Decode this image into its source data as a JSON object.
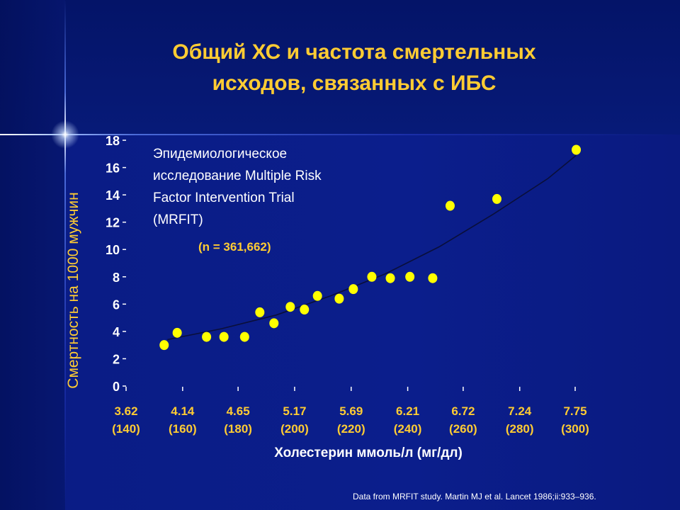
{
  "slide": {
    "title_line1": "Общий ХС и частота смертельных",
    "title_line2": "исходов, связанных с ИБС",
    "study_line1": "Эпидемиологическое",
    "study_line2": "исследование Multiple Risk",
    "study_line3": "Factor Intervention Trial",
    "study_line4": "(MRFIT)",
    "n_label": "(n = 361,662)",
    "source": "Data from MRFIT study. Martin MJ et al. Lancet 1986;ii:933–936."
  },
  "colors": {
    "background": "#0b1e8c",
    "accent_text": "#ffcc33",
    "point": "#ffff00",
    "tick_label": "#ffffff"
  },
  "chart_data": {
    "type": "scatter",
    "title": "Общий ХС и частота смертельных исходов, связанных с ИБС",
    "xlabel": "Холестерин  ммоль/л (мг/дл)",
    "ylabel": "Смертность на 1000 мужчин",
    "xlim": [
      3.62,
      7.75
    ],
    "ylim": [
      0,
      18
    ],
    "x_ticks": [
      {
        "value": 3.62,
        "line1": "3.62",
        "line2": "(140)"
      },
      {
        "value": 4.14,
        "line1": "4.14",
        "line2": "(160)"
      },
      {
        "value": 4.65,
        "line1": "4.65",
        "line2": "(180)"
      },
      {
        "value": 5.17,
        "line1": "5.17",
        "line2": "(200)"
      },
      {
        "value": 5.69,
        "line1": "5.69",
        "line2": "(220)"
      },
      {
        "value": 6.21,
        "line1": "6.21",
        "line2": "(240)"
      },
      {
        "value": 6.72,
        "line1": "6.72",
        "line2": "(260)"
      },
      {
        "value": 7.24,
        "line1": "7.24",
        "line2": "(280)"
      },
      {
        "value": 7.75,
        "line1": "7.75",
        "line2": "(300)"
      }
    ],
    "y_ticks": [
      0,
      2,
      4,
      6,
      8,
      10,
      12,
      14,
      16,
      18
    ],
    "series": [
      {
        "points": [
          {
            "x": 3.97,
            "y": 3.0
          },
          {
            "x": 4.09,
            "y": 3.9
          },
          {
            "x": 4.36,
            "y": 3.6
          },
          {
            "x": 4.52,
            "y": 3.6
          },
          {
            "x": 4.71,
            "y": 3.6
          },
          {
            "x": 4.85,
            "y": 5.4
          },
          {
            "x": 4.98,
            "y": 4.6
          },
          {
            "x": 5.13,
            "y": 5.8
          },
          {
            "x": 5.26,
            "y": 5.6
          },
          {
            "x": 5.38,
            "y": 6.6
          },
          {
            "x": 5.58,
            "y": 6.4
          },
          {
            "x": 5.71,
            "y": 7.1
          },
          {
            "x": 5.88,
            "y": 8.0
          },
          {
            "x": 6.05,
            "y": 7.9
          },
          {
            "x": 6.23,
            "y": 8.0
          },
          {
            "x": 6.44,
            "y": 7.9
          },
          {
            "x": 6.6,
            "y": 13.2
          },
          {
            "x": 7.03,
            "y": 13.7
          },
          {
            "x": 7.76,
            "y": 17.3
          }
        ]
      }
    ],
    "trend": [
      {
        "x": 4.0,
        "y": 3.4
      },
      {
        "x": 4.5,
        "y": 4.2
      },
      {
        "x": 5.0,
        "y": 5.2
      },
      {
        "x": 5.5,
        "y": 6.6
      },
      {
        "x": 6.0,
        "y": 8.2
      },
      {
        "x": 6.5,
        "y": 10.2
      },
      {
        "x": 7.0,
        "y": 12.6
      },
      {
        "x": 7.5,
        "y": 15.2
      },
      {
        "x": 7.76,
        "y": 16.9
      }
    ],
    "grid": false,
    "legend": "none"
  }
}
